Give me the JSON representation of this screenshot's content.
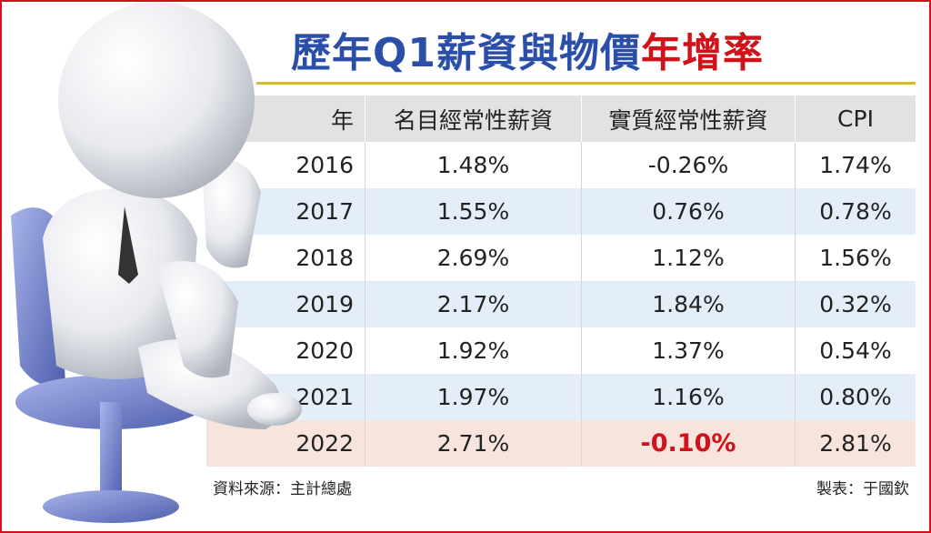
{
  "header": {
    "title": "歷年Q1薪資與物價",
    "title_highlight": "年增率"
  },
  "table": {
    "columns": [
      "年",
      "名目經常性薪資",
      "實質經常性薪資",
      "CPI"
    ],
    "rows": [
      [
        "2016",
        "1.48%",
        "-0.26%",
        "1.74%"
      ],
      [
        "2017",
        "1.55%",
        "0.76%",
        "0.78%"
      ],
      [
        "2018",
        "2.69%",
        "1.12%",
        "1.56%"
      ],
      [
        "2019",
        "2.17%",
        "1.84%",
        "0.32%"
      ],
      [
        "2020",
        "1.92%",
        "1.37%",
        "0.54%"
      ],
      [
        "2021",
        "1.97%",
        "1.16%",
        "0.80%"
      ],
      [
        "2022",
        "2.71%",
        "-0.10%",
        "2.81%"
      ]
    ]
  },
  "footer": {
    "source": "資料來源：主計總處",
    "maker": "製表：于國欽"
  }
}
